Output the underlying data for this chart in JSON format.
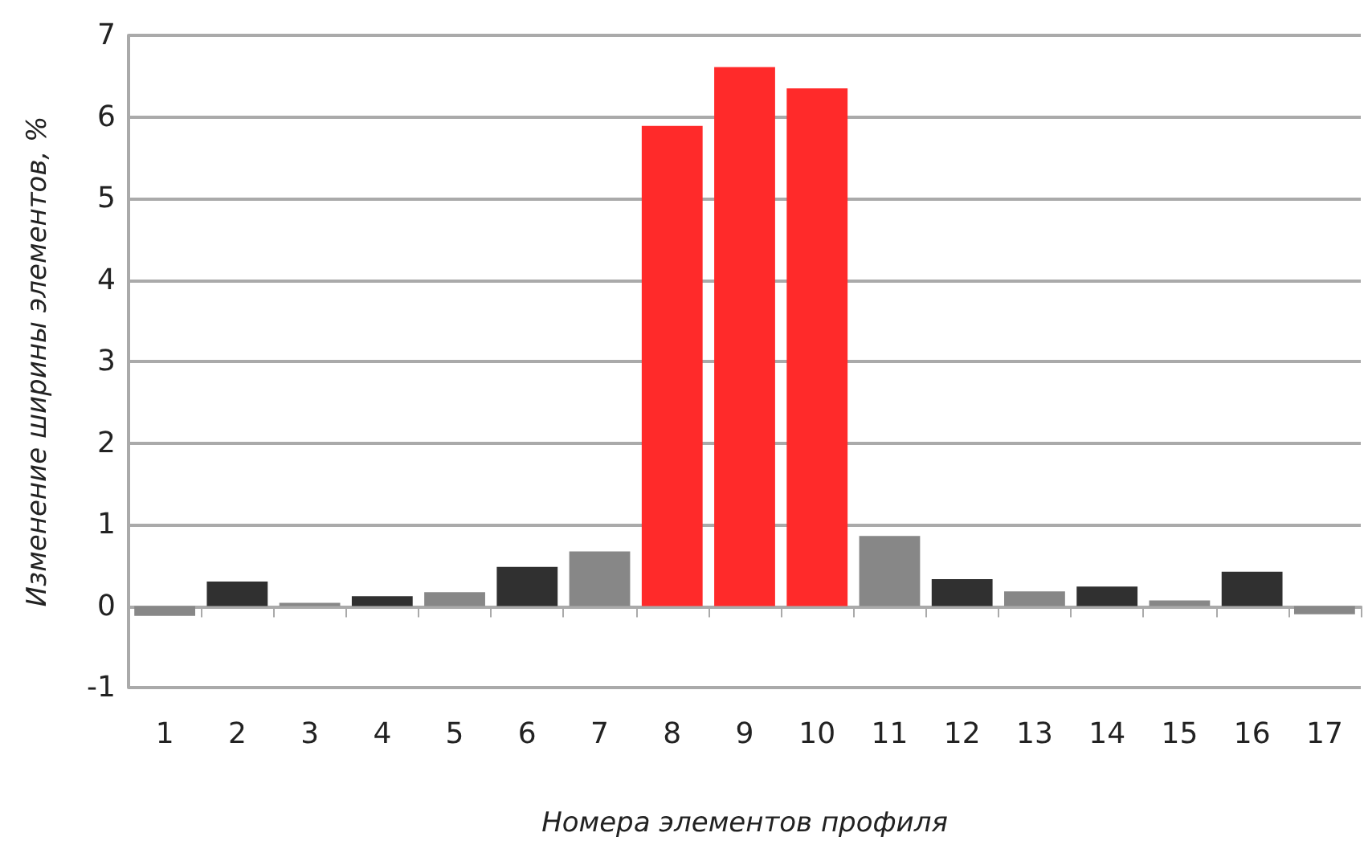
{
  "chart_data": {
    "type": "bar",
    "xlabel": "Номера элементов профиля",
    "ylabel": "Изменение ширины элементов, %",
    "categories": [
      "1",
      "2",
      "3",
      "4",
      "5",
      "6",
      "7",
      "8",
      "9",
      "10",
      "11",
      "12",
      "13",
      "14",
      "15",
      "16",
      "17"
    ],
    "values": [
      -0.12,
      0.3,
      0.04,
      0.12,
      0.17,
      0.48,
      0.67,
      5.89,
      6.61,
      6.35,
      0.86,
      0.33,
      0.18,
      0.24,
      0.07,
      0.42,
      -0.1
    ],
    "colors": [
      "#878787",
      "#303030",
      "#878787",
      "#303030",
      "#878787",
      "#303030",
      "#878787",
      "#ff2a2a",
      "#ff2a2a",
      "#ff2a2a",
      "#878787",
      "#303030",
      "#878787",
      "#303030",
      "#878787",
      "#303030",
      "#878787"
    ],
    "ylim": [
      -1,
      7
    ],
    "yticks": [
      -1,
      0,
      1,
      2,
      3,
      4,
      5,
      6,
      7
    ],
    "grid": "y"
  }
}
